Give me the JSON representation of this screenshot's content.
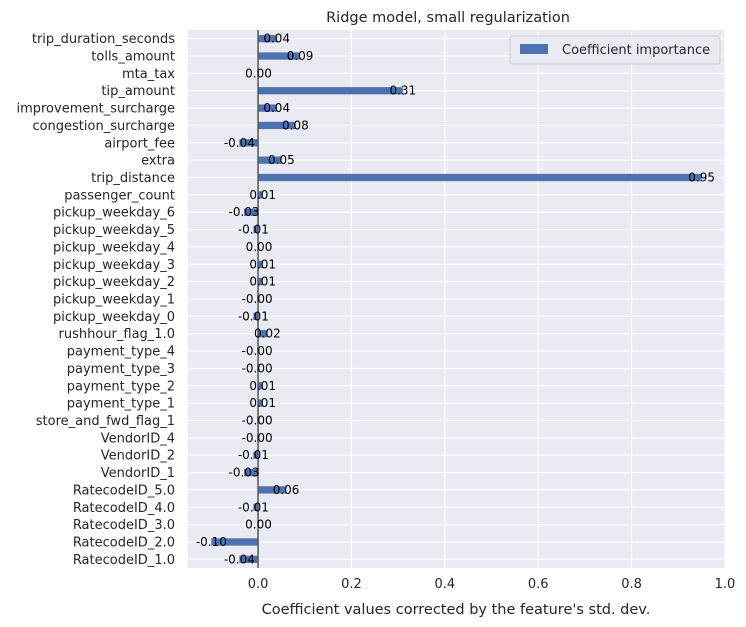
{
  "chart_data": {
    "type": "bar",
    "orientation": "horizontal",
    "title": "Ridge model, small regularization",
    "xlabel": "Coefficient values corrected by the feature's std. dev.",
    "ylabel": "",
    "xlim": [
      -0.15,
      1.0
    ],
    "xticks": [
      0.0,
      0.2,
      0.4,
      0.6,
      0.8,
      1.0
    ],
    "xtick_labels": [
      "0.0",
      "0.2",
      "0.4",
      "0.6",
      "0.8",
      "1.0"
    ],
    "grid": true,
    "legend_position": "top-right",
    "colors": {
      "bar": "#4c72b0",
      "background": "#eaeaf2",
      "grid": "#ffffff",
      "zero_line": "#555555"
    },
    "series": [
      {
        "name": "Coefficient importance",
        "categories": [
          "trip_duration_seconds",
          "tolls_amount",
          "mta_tax",
          "tip_amount",
          "improvement_surcharge",
          "congestion_surcharge",
          "airport_fee",
          "extra",
          "trip_distance",
          "passenger_count",
          "pickup_weekday_6",
          "pickup_weekday_5",
          "pickup_weekday_4",
          "pickup_weekday_3",
          "pickup_weekday_2",
          "pickup_weekday_1",
          "pickup_weekday_0",
          "rushhour_flag_1.0",
          "payment_type_4",
          "payment_type_3",
          "payment_type_2",
          "payment_type_1",
          "store_and_fwd_flag_1",
          "VendorID_4",
          "VendorID_2",
          "VendorID_1",
          "RatecodeID_5.0",
          "RatecodeID_4.0",
          "RatecodeID_3.0",
          "RatecodeID_2.0",
          "RatecodeID_1.0"
        ],
        "values": [
          0.04,
          0.09,
          0.001,
          0.31,
          0.04,
          0.08,
          -0.04,
          0.05,
          0.95,
          0.01,
          -0.03,
          -0.01,
          0.002,
          0.01,
          0.01,
          -0.002,
          -0.01,
          0.02,
          -0.002,
          -0.002,
          0.01,
          0.01,
          -0.002,
          -0.002,
          -0.01,
          -0.03,
          0.06,
          -0.01,
          0.001,
          -0.1,
          -0.04
        ],
        "labels": [
          "0.04",
          "0.09",
          "0.00",
          "0.31",
          "0.04",
          "0.08",
          "-0.04",
          "0.05",
          "0.95",
          "0.01",
          "-0.03",
          "-0.01",
          "0.00",
          "0.01",
          "0.01",
          "-0.00",
          "-0.01",
          "0.02",
          "-0.00",
          "-0.00",
          "0.01",
          "0.01",
          "-0.00",
          "-0.00",
          "-0.01",
          "-0.03",
          "0.06",
          "-0.01",
          "0.00",
          "-0.10",
          "-0.04"
        ]
      }
    ]
  }
}
